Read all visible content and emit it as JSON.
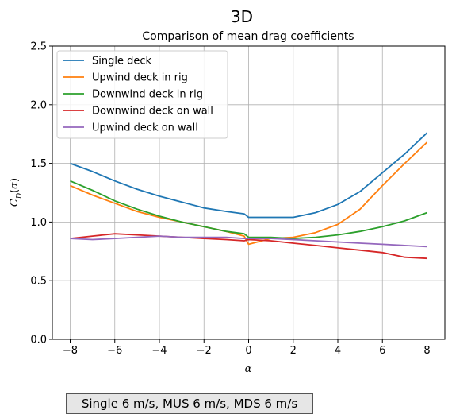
{
  "supertitle": "3D",
  "caption": "Single 6 m/s, MUS 6 m/s, MDS 6 m/s",
  "chart_data": {
    "type": "line",
    "title": "Comparison of mean drag coefficients",
    "xlabel": "α",
    "ylabel": "C_D(α)",
    "xlim": [
      -8.8,
      8.8
    ],
    "ylim": [
      0.0,
      2.5
    ],
    "xticks": [
      -8,
      -6,
      -4,
      -2,
      0,
      2,
      4,
      6,
      8
    ],
    "xtick_labels": [
      "−8",
      "−6",
      "−4",
      "−2",
      "0",
      "2",
      "4",
      "6",
      "8"
    ],
    "yticks": [
      0.0,
      0.5,
      1.0,
      1.5,
      2.0,
      2.5
    ],
    "ytick_labels": [
      "0.0",
      "0.5",
      "1.0",
      "1.5",
      "2.0",
      "2.5"
    ],
    "grid": true,
    "legend_position": "top-left",
    "x": [
      -8,
      -7,
      -6,
      -5,
      -4,
      -3,
      -2,
      -1,
      -0.2,
      0,
      1,
      2,
      3,
      4,
      5,
      6,
      7,
      8
    ],
    "series": [
      {
        "name": "Single deck",
        "color": "#1f77b4",
        "values": [
          1.5,
          1.43,
          1.35,
          1.28,
          1.22,
          1.17,
          1.12,
          1.09,
          1.07,
          1.04,
          1.04,
          1.04,
          1.08,
          1.15,
          1.26,
          1.42,
          1.58,
          1.76
        ]
      },
      {
        "name": "Upwind deck in rig",
        "color": "#ff7f0e",
        "values": [
          1.31,
          1.23,
          1.16,
          1.09,
          1.04,
          1.0,
          0.96,
          0.92,
          0.88,
          0.81,
          0.86,
          0.87,
          0.91,
          0.98,
          1.11,
          1.31,
          1.5,
          1.68
        ]
      },
      {
        "name": "Downwind deck in rig",
        "color": "#2ca02c",
        "values": [
          1.35,
          1.27,
          1.18,
          1.11,
          1.05,
          1.0,
          0.96,
          0.92,
          0.9,
          0.87,
          0.87,
          0.86,
          0.87,
          0.89,
          0.92,
          0.96,
          1.01,
          1.08
        ]
      },
      {
        "name": "Downwind deck on wall",
        "color": "#d62728",
        "values": [
          0.86,
          0.88,
          0.9,
          0.89,
          0.88,
          0.87,
          0.86,
          0.85,
          0.84,
          0.85,
          0.84,
          0.82,
          0.8,
          0.78,
          0.76,
          0.74,
          0.7,
          0.69
        ]
      },
      {
        "name": "Upwind deck on wall",
        "color": "#9467bd",
        "values": [
          0.86,
          0.85,
          0.86,
          0.87,
          0.88,
          0.87,
          0.87,
          0.87,
          0.86,
          0.86,
          0.86,
          0.85,
          0.84,
          0.83,
          0.82,
          0.81,
          0.8,
          0.79
        ]
      }
    ]
  }
}
